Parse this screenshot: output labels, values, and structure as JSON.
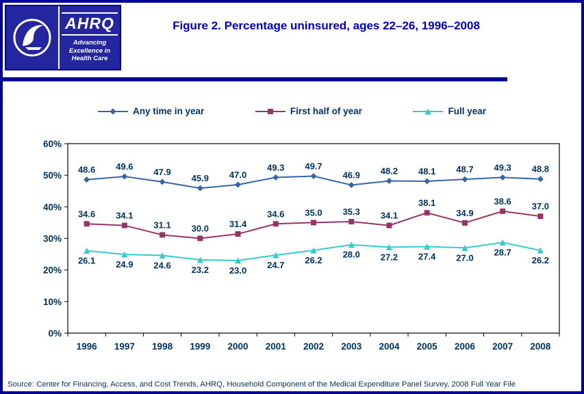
{
  "header": {
    "title": "Figure 2. Percentage uninsured, ages 22–26, 1996–2008",
    "logo": {
      "ahrq_acronym": "AHRQ",
      "ahrq_tagline": "Advancing Excellence in Health Care"
    }
  },
  "footer": {
    "source": "Source: Center for Financing, Access, and Cost Trends, AHRQ, Household Component of the Medical Expenditure Panel Survey, 2008 Full Year File"
  },
  "colors": {
    "border_navy": "#000099",
    "title_blue": "#0000cc",
    "text_navy": "#003366",
    "logo_blue": "#2426a0"
  },
  "chart_data": {
    "type": "line",
    "title": "Figure 2. Percentage uninsured, ages 22–26, 1996–2008",
    "categories": [
      "1996",
      "1997",
      "1998",
      "1999",
      "2000",
      "2001",
      "2002",
      "2003",
      "2004",
      "2005",
      "2006",
      "2007",
      "2008"
    ],
    "series": [
      {
        "name": "Any time in year",
        "marker": "diamond",
        "color": "#3465aa",
        "label_position": "above",
        "values": [
          48.6,
          49.6,
          47.9,
          45.9,
          47.0,
          49.3,
          49.7,
          46.9,
          48.2,
          48.1,
          48.7,
          49.3,
          48.8
        ]
      },
      {
        "name": "First half of year",
        "marker": "square",
        "color": "#993366",
        "label_position": "above",
        "values": [
          34.6,
          34.1,
          31.1,
          30.0,
          31.4,
          34.6,
          35.0,
          35.3,
          34.1,
          38.1,
          34.9,
          38.6,
          37.0
        ]
      },
      {
        "name": "Full year",
        "marker": "triangle",
        "color": "#33cccc",
        "label_position": "below",
        "values": [
          26.1,
          24.9,
          24.6,
          23.2,
          23.0,
          24.7,
          26.2,
          28.0,
          27.2,
          27.4,
          27.0,
          28.7,
          26.2
        ]
      }
    ],
    "xlabel": "",
    "ylabel": "",
    "ylim": [
      0,
      60
    ],
    "ytick_step": 10,
    "ytick_suffix": "%",
    "grid": false,
    "legend_position": "top"
  }
}
